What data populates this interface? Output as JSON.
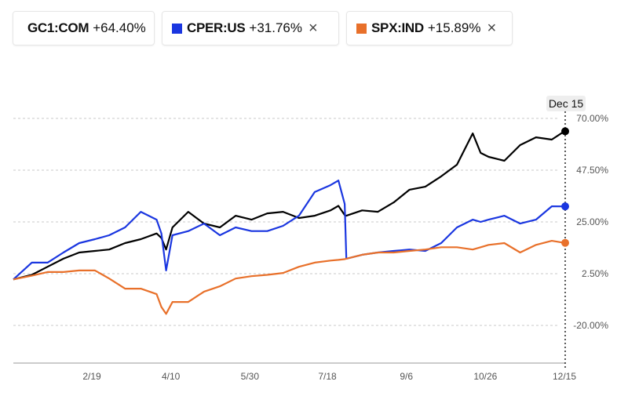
{
  "legend": [
    {
      "symbol": "GC1:COM",
      "change": "+64.40%",
      "color": "#000000",
      "removable": false
    },
    {
      "symbol": "CPER:US",
      "change": "+31.76%",
      "color": "#1a36e0",
      "removable": true,
      "close_icon": "×"
    },
    {
      "symbol": "SPX:IND",
      "change": "+15.89%",
      "color": "#e8702a",
      "removable": true,
      "close_icon": "×"
    }
  ],
  "crosshair_label": "Dec 15",
  "chart_data": {
    "type": "line",
    "y_ticks": [
      "70.00%",
      "47.50%",
      "25.00%",
      "2.50%",
      "-20.00%"
    ],
    "y_tick_values": [
      70,
      47.5,
      25,
      2.5,
      -20
    ],
    "x_ticks": [
      "2/19",
      "4/10",
      "5/30",
      "7/18",
      "9/6",
      "10/26",
      "12/15"
    ],
    "y_unit": "%",
    "grid": "horizontal dashed",
    "x": [
      "1/1",
      "1/12",
      "1/22",
      "2/1",
      "2/11",
      "2/21",
      "3/2",
      "3/12",
      "3/22",
      "4/1",
      "4/4",
      "4/7",
      "4/11",
      "4/21",
      "5/1",
      "5/11",
      "5/21",
      "5/31",
      "6/10",
      "6/20",
      "6/30",
      "7/10",
      "7/20",
      "7/25",
      "7/29",
      "7/30",
      "8/9",
      "8/19",
      "8/29",
      "9/8",
      "9/18",
      "9/28",
      "10/8",
      "10/18",
      "10/23",
      "10/28",
      "11/7",
      "11/17",
      "11/27",
      "12/7",
      "12/15"
    ],
    "series": [
      {
        "name": "GC1:COM",
        "color": "#000000",
        "values": [
          0,
          2,
          5.5,
          9,
          11.7,
          12.4,
          13,
          15.8,
          17.5,
          20,
          18,
          13,
          22.6,
          29.4,
          24.3,
          22.6,
          27.7,
          26,
          28.7,
          29.4,
          26.7,
          27.7,
          30,
          32,
          28,
          27.7,
          30,
          29.4,
          33.5,
          39,
          40.3,
          44.8,
          49.9,
          63.5,
          55,
          53.3,
          51.6,
          58.4,
          61.8,
          60.8,
          64.4
        ]
      },
      {
        "name": "CPER:US",
        "color": "#1a36e0",
        "values": [
          0,
          7.3,
          7.3,
          11.7,
          15.8,
          17.5,
          19.2,
          22.6,
          29.4,
          26,
          20,
          3.9,
          19.2,
          21,
          24.3,
          19.2,
          22.6,
          21,
          21,
          23.3,
          27.7,
          38,
          41,
          43,
          32.8,
          9,
          10.7,
          11.7,
          12.4,
          13,
          12.4,
          15.8,
          22.6,
          26,
          25,
          26,
          27.7,
          24.3,
          26,
          31.8,
          31.76
        ]
      },
      {
        "name": "SPX:IND",
        "color": "#e8702a",
        "values": [
          0,
          1.6,
          3.2,
          3.2,
          3.9,
          3.9,
          0.4,
          -4,
          -4,
          -6.4,
          -12,
          -15,
          -9.8,
          -9.8,
          -5.3,
          -3,
          0.4,
          1.4,
          2,
          2.8,
          5.5,
          7.3,
          8.2,
          8.5,
          8.8,
          9,
          10.7,
          11.7,
          11.7,
          12.4,
          13,
          14,
          14,
          13,
          14,
          15,
          15.8,
          11.7,
          15,
          16.8,
          15.89
        ]
      }
    ]
  }
}
